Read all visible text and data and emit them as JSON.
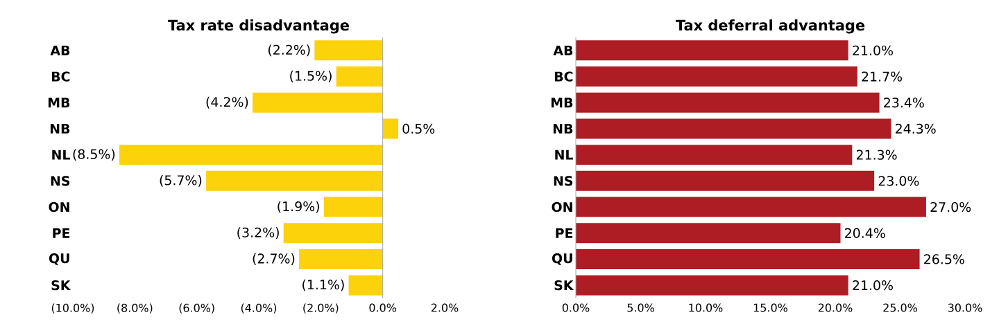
{
  "chart_data": [
    {
      "type": "bar",
      "orientation": "horizontal",
      "title": "Tax rate disadvantage",
      "categories": [
        "AB",
        "BC",
        "MB",
        "NB",
        "NL",
        "NS",
        "ON",
        "PE",
        "QU",
        "SK"
      ],
      "values": [
        -2.2,
        -1.5,
        -4.2,
        0.5,
        -8.5,
        -5.7,
        -1.9,
        -3.2,
        -2.7,
        -1.1
      ],
      "value_labels": [
        "(2.2%)",
        "(1.5%)",
        "(4.2%)",
        "0.5%",
        "(8.5%)",
        "(5.7%)",
        "(1.9%)",
        "(3.2%)",
        "(2.7%)",
        "(1.1%)"
      ],
      "color": "#fcd20a",
      "xlim": [
        -10,
        2
      ],
      "xticks": [
        {
          "value": -10,
          "label": "(10.0%)"
        },
        {
          "value": -8,
          "label": "(8.0%)"
        },
        {
          "value": -6,
          "label": "(6.0%)"
        },
        {
          "value": -4,
          "label": "(4.0%)"
        },
        {
          "value": -2,
          "label": "(2.0%)"
        },
        {
          "value": 0,
          "label": "0.0%"
        },
        {
          "value": 2,
          "label": "2.0%"
        }
      ]
    },
    {
      "type": "bar",
      "orientation": "horizontal",
      "title": "Tax deferral advantage",
      "categories": [
        "AB",
        "BC",
        "MB",
        "NB",
        "NL",
        "NS",
        "ON",
        "PE",
        "QU",
        "SK"
      ],
      "values": [
        21.0,
        21.7,
        23.4,
        24.3,
        21.3,
        23.0,
        27.0,
        20.4,
        26.5,
        21.0
      ],
      "value_labels": [
        "21.0%",
        "21.7%",
        "23.4%",
        "24.3%",
        "21.3%",
        "23.0%",
        "27.0%",
        "20.4%",
        "26.5%",
        "21.0%"
      ],
      "color": "#ae1c24",
      "xlim": [
        0,
        30
      ],
      "xticks": [
        {
          "value": 0,
          "label": "0.0%"
        },
        {
          "value": 5,
          "label": "5.0%"
        },
        {
          "value": 10,
          "label": "10.0%"
        },
        {
          "value": 15,
          "label": "15.0%"
        },
        {
          "value": 20,
          "label": "20.0%"
        },
        {
          "value": 25,
          "label": "25.0%"
        },
        {
          "value": 30,
          "label": "30.0%"
        }
      ]
    }
  ]
}
